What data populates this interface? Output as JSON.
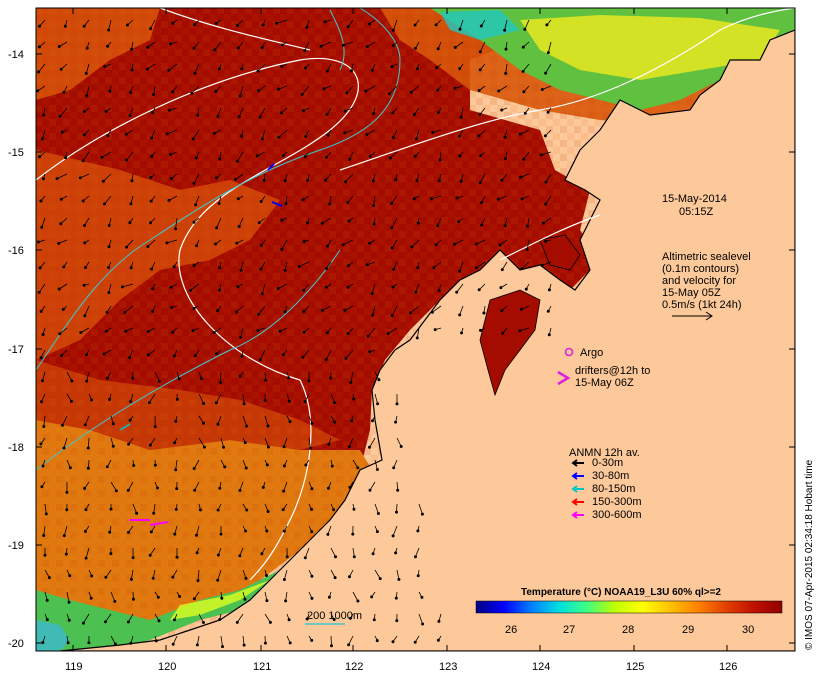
{
  "map": {
    "lat_ticks": [
      "-14",
      "-15",
      "-16",
      "-17",
      "-18",
      "-19",
      "-20"
    ],
    "lon_ticks": [
      "119",
      "120",
      "121",
      "122",
      "123",
      "124",
      "125",
      "126"
    ]
  },
  "timestamp": {
    "date": "15-May-2014",
    "time": "05:15Z"
  },
  "altimetry": {
    "lines": [
      "Altimetric sealevel",
      "(0.1m contours)",
      "and velocity for",
      "15-May 05Z",
      "0.5m/s (1kt 24h)"
    ]
  },
  "argo": {
    "label": "Argo",
    "color": "#e020e0"
  },
  "drifters": {
    "lines": [
      "drifters@12h to",
      "15-May 06Z"
    ],
    "color": "#e020e0"
  },
  "anmn": {
    "title": "ANMN 12h av.",
    "items": [
      {
        "label": "0-30m",
        "color": "#000000"
      },
      {
        "label": "30-80m",
        "color": "#0000ff"
      },
      {
        "label": "80-150m",
        "color": "#00c8c8"
      },
      {
        "label": "150-300m",
        "color": "#ff0000"
      },
      {
        "label": "300-600m",
        "color": "#ff00ff"
      }
    ]
  },
  "bathymetry": {
    "label": "200  1000m"
  },
  "colorbar": {
    "title": "Temperature (°C) NOAA19_L3U 60% ql>=2",
    "ticks": [
      "26",
      "27",
      "28",
      "29",
      "30"
    ],
    "colors": [
      "#000080",
      "#0000ff",
      "#0080ff",
      "#00e0e0",
      "#40ff80",
      "#c0ff00",
      "#ffff00",
      "#ffc000",
      "#ff8000",
      "#e04000",
      "#c01000",
      "#900000"
    ]
  },
  "credit": "© IMOS 07-Apr-2015 02:34:18 Hobart time",
  "colors": {
    "land": "#fdc99a",
    "sea_warm": "#a50c00",
    "sea_mid": "#d44a08",
    "sea_cool": "#e28a10",
    "sea_cold": "#4cc050"
  }
}
